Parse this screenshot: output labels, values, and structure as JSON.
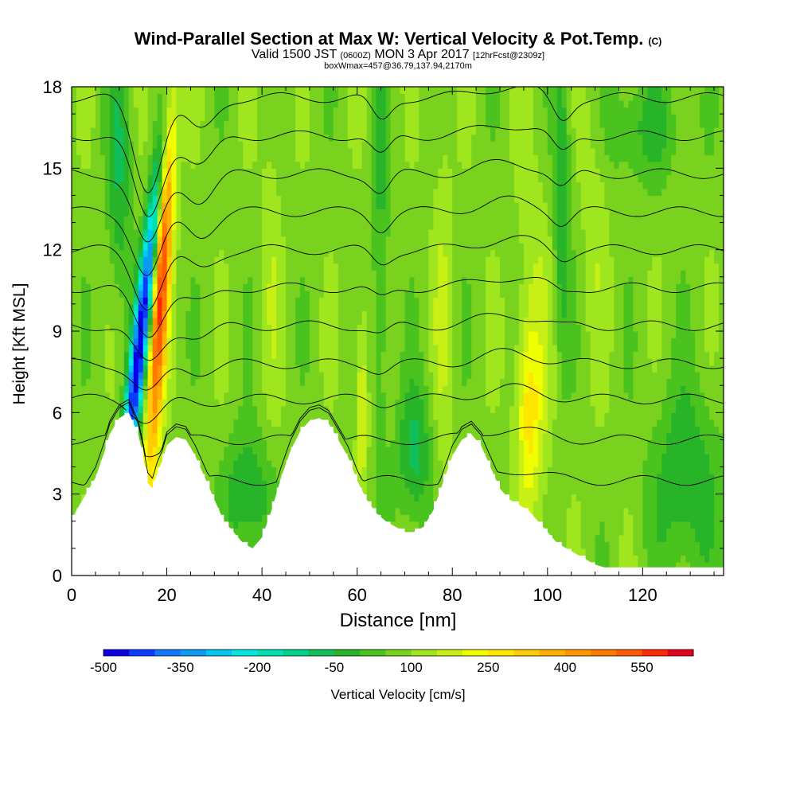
{
  "header": {
    "title": "Wind-Parallel Section at Max W: Vertical Velocity & Pot.Temp.",
    "title_tag": "(C)",
    "valid_prefix": "Valid 1500 JST",
    "valid_zulu": "(0600Z)",
    "valid_date": "MON 3 Apr 2017",
    "forecast": "[12hrFcst@2309z]",
    "box_info": "boxWmax=457@36.79,137.94,2170m"
  },
  "chart_data": {
    "type": "heatmap",
    "title": "Wind-Parallel Section at Max W: Vertical Velocity & Pot.Temp.",
    "xlabel": "Distance [nm]",
    "ylabel": "Height [Kft MSL]",
    "xlim": [
      0,
      137
    ],
    "ylim": [
      0,
      18
    ],
    "x_ticks": [
      "0",
      "20",
      "40",
      "60",
      "80",
      "100",
      "120"
    ],
    "y_ticks": [
      "0",
      "3",
      "6",
      "9",
      "12",
      "15",
      "18"
    ],
    "colorbar": {
      "label": "Vertical Velocity [cm/s]",
      "tick_labels": [
        "-500",
        "-350",
        "-200",
        "-50",
        "100",
        "250",
        "400",
        "550"
      ],
      "tick_values": [
        -500,
        -350,
        -200,
        -50,
        100,
        250,
        400,
        550
      ],
      "range": [
        -500,
        650
      ],
      "step": 50,
      "colors": [
        "#0a00e6",
        "#0a3cff",
        "#1478ff",
        "#0a9bf5",
        "#00c8f0",
        "#00e8e0",
        "#00e1b4",
        "#00d28c",
        "#10be5a",
        "#28b428",
        "#4bc31e",
        "#78d21e",
        "#a0e61e",
        "#c8f014",
        "#f0ff00",
        "#ffe600",
        "#ffcc00",
        "#ffb000",
        "#ff9600",
        "#ff7800",
        "#ff5a00",
        "#ff2800",
        "#e6001e",
        "#c80032",
        "#a00050",
        "#800064",
        "#5a0078"
      ]
    },
    "vertical_velocity": {
      "units": "cm/s",
      "box_max": 457,
      "features": [
        {
          "kind": "downdraft",
          "x_nm": 14,
          "height_kft": 8.5,
          "value": -480
        },
        {
          "kind": "updraft",
          "x_nm": 18.5,
          "height_kft": 10.5,
          "value": 457
        },
        {
          "kind": "updraft",
          "x_nm": 96,
          "height_kft": 6,
          "value": 230
        },
        {
          "kind": "updraft",
          "x_nm": 61,
          "height_kft": 7,
          "value": 200
        },
        {
          "kind": "downdraft",
          "x_nm": 38,
          "height_kft": 3,
          "value": -100
        },
        {
          "kind": "downdraft",
          "x_nm": 72,
          "height_kft": 5,
          "value": -100
        },
        {
          "kind": "downdraft",
          "x_nm": 103,
          "height_kft": 14,
          "value": -100
        }
      ]
    },
    "terrain_kft": {
      "x": [
        0,
        1,
        3,
        5,
        7,
        8,
        10,
        12,
        14,
        15,
        16,
        17,
        18,
        19,
        20,
        22,
        24,
        26,
        28,
        30,
        32,
        34,
        36,
        38,
        40,
        42,
        44,
        46,
        48,
        50,
        52,
        54,
        56,
        58,
        60,
        62,
        64,
        66,
        68,
        70,
        72,
        74,
        76,
        78,
        80,
        82,
        84,
        86,
        88,
        90,
        92,
        94,
        96,
        98,
        100,
        102,
        104,
        106,
        108,
        110,
        112,
        114,
        116,
        118,
        120,
        122,
        124,
        126,
        128,
        130,
        132,
        134,
        137
      ],
      "y": [
        2.0,
        2.4,
        3.0,
        3.6,
        4.6,
        5.2,
        5.8,
        6.0,
        5.2,
        4.4,
        3.4,
        3.2,
        3.8,
        4.2,
        4.8,
        5.1,
        5.0,
        4.4,
        3.6,
        2.8,
        2.0,
        1.6,
        1.2,
        1.0,
        1.4,
        2.4,
        3.6,
        4.6,
        5.3,
        5.7,
        5.8,
        5.6,
        5.0,
        4.4,
        3.5,
        2.8,
        2.3,
        2.0,
        1.8,
        1.6,
        1.6,
        1.8,
        2.4,
        3.4,
        4.4,
        5.0,
        5.2,
        4.8,
        4.0,
        3.2,
        2.8,
        2.6,
        2.4,
        2.0,
        1.6,
        1.2,
        1.0,
        0.8,
        0.6,
        0.4,
        0.3,
        0.3,
        0.3,
        0.3,
        0.3,
        0.3,
        0.3,
        0.3,
        0.3,
        0.3,
        0.3,
        0.3,
        0.3
      ]
    },
    "potential_temperature": {
      "units": "C",
      "isentrope_heights_kft": [
        3.5,
        5.0,
        6.5,
        7.8,
        9.2,
        10.6,
        12.0,
        13.4,
        14.8,
        16.2,
        17.6
      ]
    }
  }
}
